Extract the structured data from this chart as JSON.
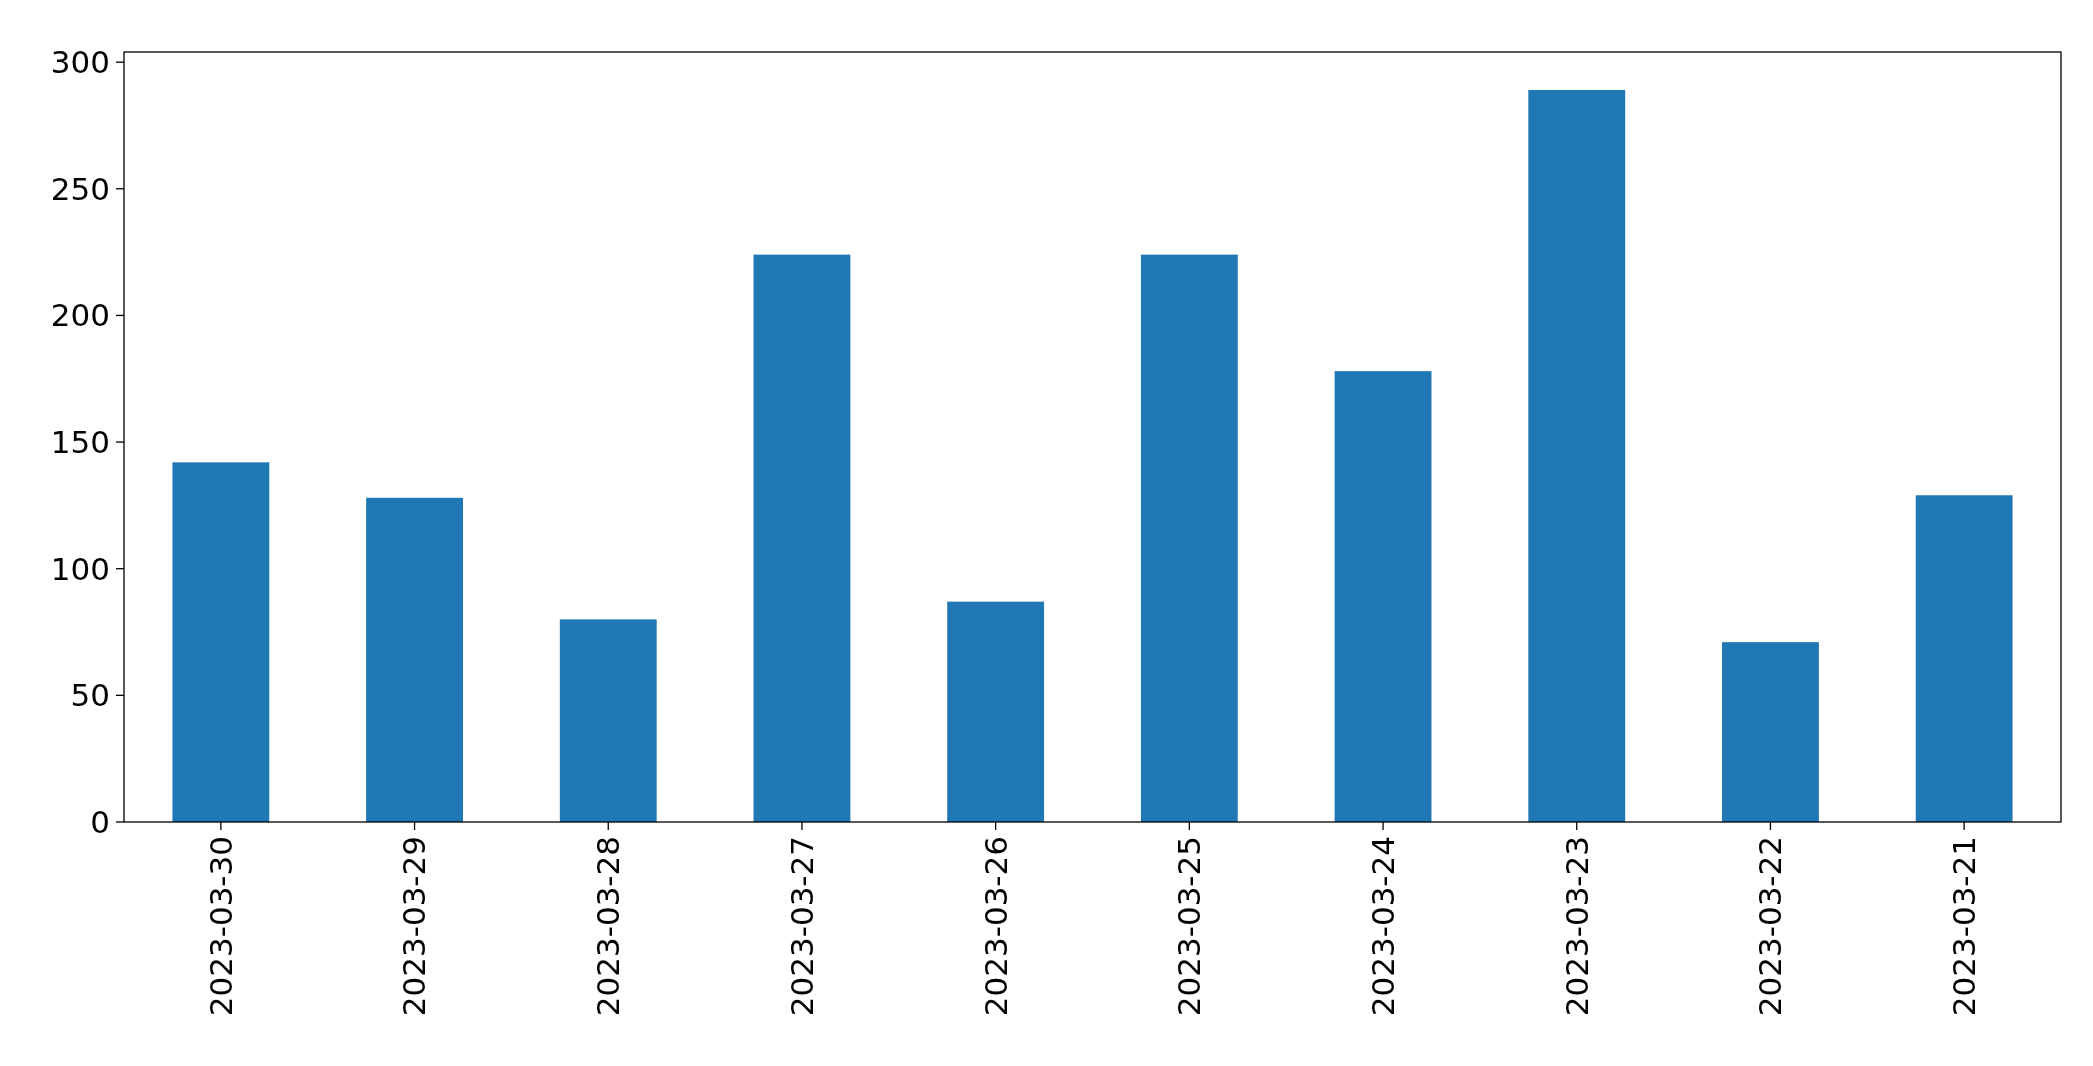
{
  "chart_data": {
    "type": "bar",
    "categories": [
      "2023-03-30",
      "2023-03-29",
      "2023-03-28",
      "2023-03-27",
      "2023-03-26",
      "2023-03-25",
      "2023-03-24",
      "2023-03-23",
      "2023-03-22",
      "2023-03-21"
    ],
    "series": [
      {
        "color": "#1f77b4",
        "values": [
          142,
          128,
          80,
          224,
          87,
          224,
          178,
          289,
          71,
          129
        ]
      }
    ],
    "ylim": [
      0,
      304
    ],
    "yticks": [
      0,
      50,
      100,
      150,
      200,
      250,
      300
    ],
    "grid": false
  }
}
